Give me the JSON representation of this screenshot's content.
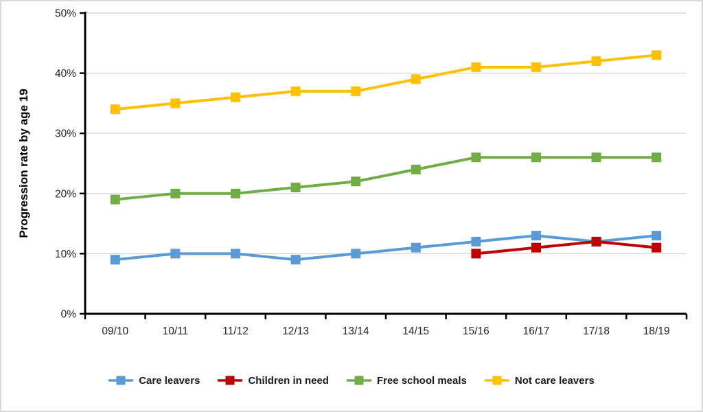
{
  "chart_data": {
    "type": "line",
    "title": "",
    "xlabel": "",
    "ylabel": "Progression rate by age 19",
    "categories": [
      "09/10",
      "10/11",
      "11/12",
      "12/13",
      "13/14",
      "14/15",
      "15/16",
      "16/17",
      "17/18",
      "18/19"
    ],
    "ylim": [
      0,
      50
    ],
    "y_tick_values": [
      0,
      10,
      20,
      30,
      40,
      50
    ],
    "y_tick_labels": [
      "0%",
      "10%",
      "20%",
      "30%",
      "40%",
      "50%"
    ],
    "grid": true,
    "legend_position": "bottom",
    "marker": "square",
    "series": [
      {
        "name": "Care leavers",
        "color": "#5B9BD5",
        "values": [
          9,
          10,
          10,
          9,
          10,
          11,
          12,
          13,
          12,
          13
        ]
      },
      {
        "name": "Children in need",
        "color": "#C00000",
        "values": [
          null,
          null,
          null,
          null,
          null,
          null,
          10,
          11,
          12,
          11
        ]
      },
      {
        "name": "Free school meals",
        "color": "#70AD47",
        "values": [
          19,
          20,
          20,
          21,
          22,
          24,
          26,
          26,
          26,
          26
        ]
      },
      {
        "name": "Not care leavers",
        "color": "#FFC000",
        "values": [
          34,
          35,
          36,
          37,
          37,
          39,
          41,
          41,
          42,
          43
        ]
      }
    ]
  },
  "colors": {
    "background": "#FFFFFF",
    "border": "#D9D9D9",
    "gridline": "#D9D9D9",
    "axis": "#000000",
    "tick_text": "#262626",
    "legend_text": "#1A1A1A"
  }
}
